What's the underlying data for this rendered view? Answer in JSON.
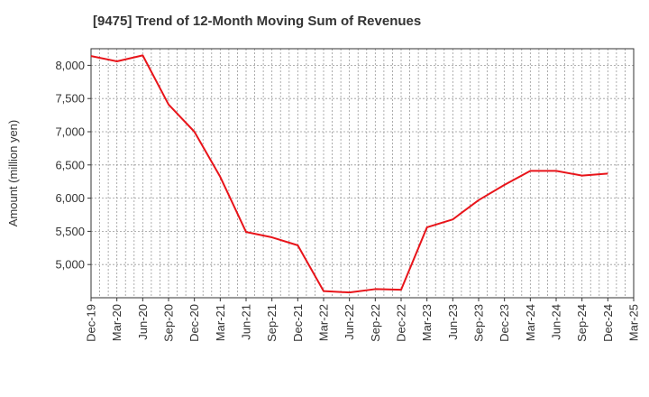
{
  "chart_data": {
    "type": "line",
    "title": "[9475]  Trend of 12-Month Moving Sum of Revenues",
    "xlabel": "",
    "ylabel": "Amount (million yen)",
    "ylim": [
      4500,
      8250
    ],
    "yticks": [
      5000,
      5500,
      6000,
      6500,
      7000,
      7500,
      8000
    ],
    "ytick_labels": [
      "5,000",
      "5,500",
      "6,000",
      "6,500",
      "7,000",
      "7,500",
      "8,000"
    ],
    "xtick_labels": [
      "Dec-19",
      "Mar-20",
      "Jun-20",
      "Sep-20",
      "Dec-20",
      "Mar-21",
      "Jun-21",
      "Sep-21",
      "Dec-21",
      "Mar-22",
      "Jun-22",
      "Sep-22",
      "Dec-22",
      "Mar-23",
      "Jun-23",
      "Sep-23",
      "Dec-23",
      "Mar-24",
      "Jun-24",
      "Sep-24",
      "Dec-24",
      "Mar-25"
    ],
    "grid": true,
    "line_color": "#e8141a",
    "series": [
      {
        "x": [
          "Dec-19",
          "Mar-20",
          "Jun-20",
          "Sep-20",
          "Dec-20",
          "Mar-21",
          "Jun-21",
          "Sep-21",
          "Dec-21",
          "Mar-22",
          "Jun-22",
          "Sep-22",
          "Dec-22",
          "Mar-23",
          "Jun-23",
          "Sep-23",
          "Dec-23",
          "Mar-24",
          "Jun-24",
          "Sep-24",
          "Dec-24"
        ],
        "values": [
          8140,
          8060,
          8150,
          7410,
          7000,
          6320,
          5490,
          5410,
          5290,
          4600,
          4580,
          4630,
          4620,
          5560,
          5680,
          5970,
          6200,
          6410,
          6410,
          6340,
          6370
        ]
      }
    ]
  }
}
